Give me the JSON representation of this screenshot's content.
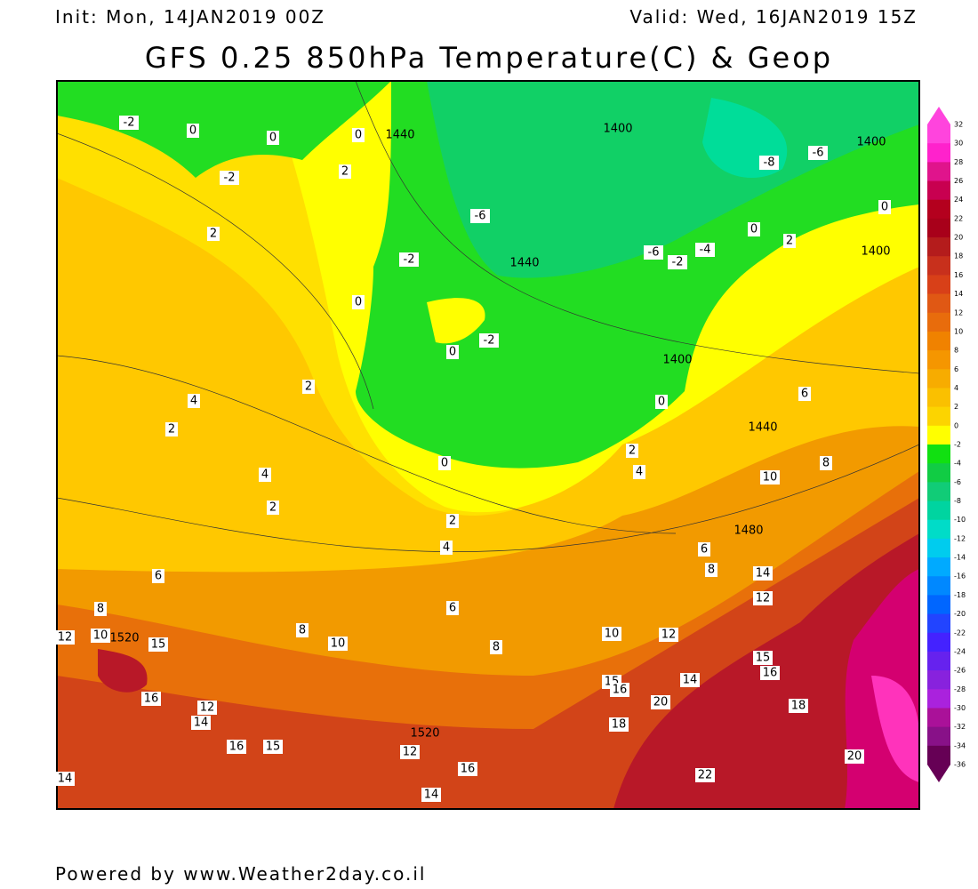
{
  "header": {
    "init": "Init: Mon, 14JAN2019 00Z",
    "valid": "Valid: Wed, 16JAN2019 15Z",
    "title": "GFS 0.25 850hPa Temperature(C) & Geop"
  },
  "footer": "Powered by www.Weather2day.co.il",
  "colorbar": [
    32,
    30,
    28,
    26,
    24,
    22,
    20,
    18,
    16,
    14,
    12,
    10,
    8,
    6,
    4,
    2,
    0,
    -2,
    -4,
    -6,
    -8,
    -10,
    -12,
    -14,
    -16,
    -18,
    -20,
    -22,
    -24,
    -26,
    -28,
    -30,
    -32,
    -34,
    -36
  ],
  "map_labels": [
    "-2",
    "0",
    "0",
    "0",
    "1440",
    "1400",
    "-8",
    "-6",
    "1400",
    "-2",
    "2",
    "-6",
    "0",
    "2",
    "0",
    "1400",
    "2",
    "-2",
    "1440",
    "-6",
    "-2",
    "-4",
    "0",
    "0",
    "-2",
    "1400",
    "2",
    "4",
    "6",
    "0",
    "2",
    "1440",
    "0",
    "2",
    "4",
    "8",
    "10",
    "4",
    "2",
    "2",
    "1480",
    "4",
    "6",
    "6",
    "8",
    "14",
    "12",
    "8",
    "6",
    "12",
    "10",
    "1520",
    "15",
    "8",
    "10",
    "8",
    "10",
    "12",
    "15",
    "16",
    "15",
    "16",
    "14",
    "20",
    "16",
    "12",
    "14",
    "18",
    "18",
    "1520",
    "16",
    "15",
    "12",
    "20",
    "16",
    "22",
    "14",
    "14"
  ]
}
